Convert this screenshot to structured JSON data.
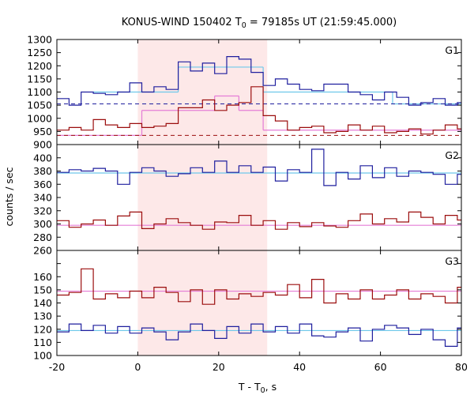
{
  "chart_data": {
    "type": "line",
    "title": {
      "main": "KONUS-WIND 150402 T",
      "sub": "0",
      "rest": " = 79185s UT (21:59:45.000)"
    },
    "xlabel": {
      "main": "T - T",
      "sub": "0",
      "rest": ", s"
    },
    "ylabel": "counts / sec",
    "xlim": [
      -20,
      80
    ],
    "x_ticks": [
      -20,
      0,
      20,
      40,
      60,
      80
    ],
    "highlight_interval": [
      0,
      32
    ],
    "colors": {
      "blue": "#1f1f9e",
      "red": "#9b0d0d",
      "cyan": "#6ec8ea",
      "pink": "#e47cd6",
      "shade": "#fde8e8"
    },
    "bin_edges": [
      -20,
      -17,
      -14,
      -11,
      -8,
      -5,
      -2,
      1,
      4,
      7,
      10,
      13,
      16,
      19,
      22,
      25,
      28,
      31,
      34,
      37,
      40,
      43,
      46,
      49,
      52,
      55,
      58,
      61,
      64,
      67,
      70,
      73,
      76,
      79,
      80
    ],
    "panels": [
      {
        "label": "G1",
        "ylim": [
          900,
          1300
        ],
        "y_ticks": [
          900,
          950,
          1000,
          1050,
          1100,
          1150,
          1200,
          1250,
          1300
        ],
        "y_tick_labels": [
          "900",
          "950",
          "1000",
          "1050",
          "1100",
          "1150",
          "1200",
          "1250",
          "1300"
        ],
        "series": [
          {
            "color": "blue",
            "values": [
              1075,
              1050,
              1100,
              1095,
              1090,
              1100,
              1135,
              1100,
              1120,
              1110,
              1215,
              1180,
              1210,
              1170,
              1235,
              1225,
              1175,
              1125,
              1150,
              1130,
              1110,
              1105,
              1130,
              1130,
              1100,
              1090,
              1070,
              1100,
              1080,
              1050,
              1060,
              1075,
              1050,
              1060
            ]
          },
          {
            "color": "red",
            "values": [
              955,
              965,
              955,
              995,
              975,
              965,
              980,
              965,
              970,
              980,
              1040,
              1040,
              1070,
              1030,
              1050,
              1060,
              1120,
              1010,
              990,
              955,
              965,
              970,
              945,
              950,
              975,
              955,
              970,
              945,
              950,
              960,
              940,
              955,
              975,
              960
            ]
          }
        ],
        "background_fits": [
          {
            "color": "cyan",
            "segments": [
              {
                "x": [
                  -11,
                  10
                ],
                "y": 1100
              },
              {
                "x": [
                  10,
                  31
                ],
                "y": 1195
              },
              {
                "x": [
                  31,
                  63
                ],
                "y": 1100
              },
              {
                "x": [
                  63,
                  80
                ],
                "y": 1055
              }
            ]
          },
          {
            "color": "pink",
            "segments": [
              {
                "x": [
                  -20,
                  1
                ],
                "y": 935
              },
              {
                "x": [
                  1,
                  19
                ],
                "y": 1030
              },
              {
                "x": [
                  19,
                  25
                ],
                "y": 1085
              },
              {
                "x": [
                  25,
                  31
                ],
                "y": 1030
              },
              {
                "x": [
                  31,
                  80
                ],
                "y": 955
              }
            ]
          }
        ],
        "dashed_levels": [
          {
            "color": "blue",
            "y": 1055
          },
          {
            "color": "red",
            "y": 935
          }
        ]
      },
      {
        "label": "G2",
        "ylim": [
          260,
          420
        ],
        "y_ticks": [
          260,
          280,
          300,
          320,
          340,
          360,
          380,
          400
        ],
        "y_tick_labels": [
          "260",
          "280",
          "300",
          "320",
          "340",
          "360",
          "380",
          "400"
        ],
        "series": [
          {
            "color": "blue",
            "values": [
              378,
              382,
              380,
              384,
              380,
              360,
              378,
              385,
              380,
              372,
              376,
              385,
              378,
              395,
              378,
              388,
              378,
              386,
              365,
              382,
              378,
              413,
              358,
              378,
              368,
              388,
              370,
              385,
              372,
              380,
              378,
              375,
              360,
              375
            ]
          },
          {
            "color": "red",
            "values": [
              305,
              295,
              300,
              306,
              298,
              312,
              318,
              293,
              300,
              308,
              302,
              298,
              292,
              303,
              302,
              313,
              298,
              305,
              292,
              302,
              296,
              302,
              297,
              295,
              305,
              315,
              300,
              308,
              303,
              318,
              310,
              300,
              313,
              306
            ]
          }
        ],
        "background_fits": [
          {
            "color": "cyan",
            "segments": [
              {
                "x": [
                  -20,
                  80
                ],
                "y": 377
              }
            ]
          },
          {
            "color": "pink",
            "segments": [
              {
                "x": [
                  -20,
                  80
                ],
                "y": 298
              }
            ]
          }
        ],
        "dashed_levels": []
      },
      {
        "label": "G3",
        "ylim": [
          100,
          180
        ],
        "y_ticks": [
          100,
          110,
          120,
          130,
          140,
          150,
          160,
          170
        ],
        "y_tick_labels": [
          "100",
          "110",
          "120",
          "130",
          "140",
          "150",
          "160",
          ""
        ],
        "series": [
          {
            "color": "blue",
            "values": [
              118,
              124,
              119,
              123,
              117,
              122,
              117,
              121,
              118,
              112,
              118,
              124,
              119,
              113,
              122,
              117,
              124,
              118,
              122,
              117,
              124,
              115,
              114,
              118,
              121,
              111,
              120,
              123,
              121,
              116,
              120,
              112,
              107,
              121
            ]
          },
          {
            "color": "red",
            "values": [
              146,
              148,
              166,
              143,
              147,
              144,
              149,
              144,
              152,
              148,
              141,
              150,
              139,
              150,
              143,
              147,
              145,
              148,
              146,
              154,
              144,
              158,
              140,
              147,
              143,
              150,
              143,
              146,
              150,
              143,
              147,
              145,
              140,
              152
            ]
          }
        ],
        "background_fits": [
          {
            "color": "cyan",
            "segments": [
              {
                "x": [
                  -20,
                  80
                ],
                "y": 119
              }
            ]
          },
          {
            "color": "pink",
            "segments": [
              {
                "x": [
                  -20,
                  80
                ],
                "y": 149
              }
            ]
          }
        ],
        "dashed_levels": []
      }
    ]
  }
}
